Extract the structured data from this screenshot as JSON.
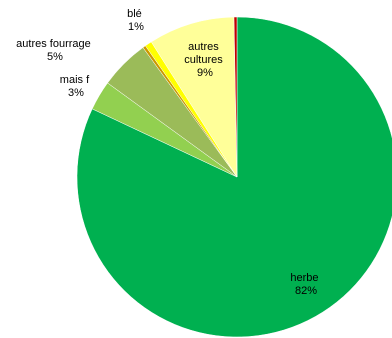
{
  "chart_data": {
    "type": "pie",
    "title": "",
    "slices": [
      {
        "label_lines": [
          "herbe"
        ],
        "value_label": "82%",
        "value": 82,
        "color": "#00b050"
      },
      {
        "label_lines": [
          "mais f"
        ],
        "value_label": "3%",
        "value": 3,
        "color": "#92d050"
      },
      {
        "label_lines": [
          "autres fourrage"
        ],
        "value_label": "5%",
        "value": 5,
        "color": "#9bbb59"
      },
      {
        "label_lines": [
          ""
        ],
        "value_label": "",
        "value": 0.3,
        "color": "#cc9900"
      },
      {
        "label_lines": [
          "blé"
        ],
        "value_label": "1%",
        "value": 0.7,
        "color": "#ffff00"
      },
      {
        "label_lines": [
          "autres",
          "cultures"
        ],
        "value_label": "9%",
        "value": 8.7,
        "color": "#ffff99"
      },
      {
        "label_lines": [
          ""
        ],
        "value_label": "",
        "value": 0.3,
        "color": "#c00000"
      }
    ]
  }
}
